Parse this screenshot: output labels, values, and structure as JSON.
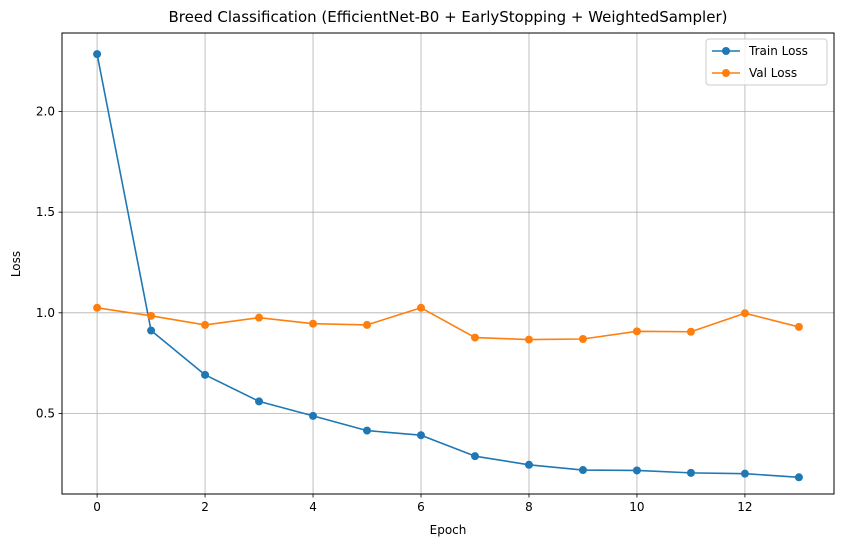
{
  "chart_data": {
    "type": "line",
    "title": "Breed Classification (EfficientNet-B0 + EarlyStopping + WeightedSampler)",
    "xlabel": "Epoch",
    "ylabel": "Loss",
    "xlim": [
      -0.65,
      13.65
    ],
    "ylim": [
      0.1,
      2.39
    ],
    "xticks": [
      0,
      2,
      4,
      6,
      8,
      10,
      12
    ],
    "yticks": [
      0.5,
      1.0,
      1.5,
      2.0
    ],
    "ytick_labels": [
      "0.5",
      "1.0",
      "1.5",
      "2.0"
    ],
    "grid": true,
    "legend_position": "top-right",
    "x": [
      0,
      1,
      2,
      3,
      4,
      5,
      6,
      7,
      8,
      9,
      10,
      11,
      12,
      13
    ],
    "series": [
      {
        "name": "Train Loss",
        "color": "#1f77b4",
        "marker": "circle",
        "values": [
          2.285,
          0.912,
          0.692,
          0.56,
          0.488,
          0.415,
          0.392,
          0.288,
          0.245,
          0.219,
          0.217,
          0.205,
          0.201,
          0.183
        ]
      },
      {
        "name": "Val Loss",
        "color": "#ff7f0e",
        "marker": "circle",
        "values": [
          1.025,
          0.985,
          0.94,
          0.976,
          0.946,
          0.94,
          1.025,
          0.877,
          0.867,
          0.87,
          0.908,
          0.906,
          0.998,
          0.93
        ]
      }
    ]
  }
}
